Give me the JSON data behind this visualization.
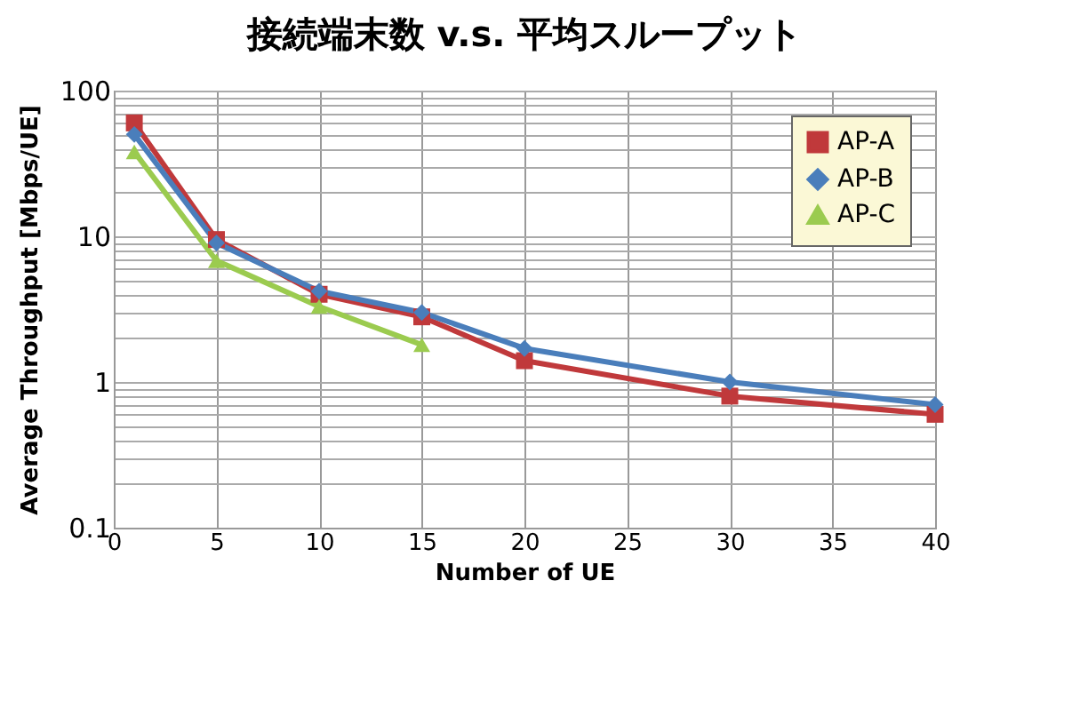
{
  "chart_data": {
    "type": "line",
    "title": "接続端末数 v.s. 平均スループット",
    "xlabel": "Number of UE",
    "ylabel": "Average Throughput [Mbps/UE]",
    "x": [
      1,
      5,
      10,
      15,
      20,
      30,
      40
    ],
    "series": [
      {
        "name": "AP-A",
        "color": "#c0393b",
        "marker": "square",
        "values": [
          60,
          9.5,
          4,
          2.8,
          1.4,
          0.8,
          0.6
        ]
      },
      {
        "name": "AP-B",
        "color": "#4a7ebb",
        "marker": "diamond",
        "values": [
          50,
          9,
          4.2,
          3,
          1.7,
          1.0,
          0.7
        ]
      },
      {
        "name": "AP-C",
        "color": "#9bcb4f",
        "marker": "triangle",
        "x": [
          1,
          5,
          10,
          15
        ],
        "values": [
          38,
          6.8,
          3.3,
          1.8
        ]
      }
    ],
    "log": "y",
    "xlim": [
      0,
      40
    ],
    "xticks": [
      0,
      5,
      10,
      15,
      20,
      25,
      30,
      35,
      40
    ],
    "ylim": [
      0.1,
      100
    ],
    "yticks": [
      0.1,
      {
        "value": 0.2,
        "label": null
      },
      {
        "value": 0.3,
        "label": null
      },
      {
        "value": 0.4,
        "label": null
      },
      {
        "value": 0.5,
        "label": null
      },
      {
        "value": 0.6,
        "label": null
      },
      {
        "value": 0.7,
        "label": null
      },
      {
        "value": 0.8,
        "label": null
      },
      {
        "value": 0.9,
        "label": null
      },
      1,
      {
        "value": 2,
        "label": null
      },
      {
        "value": 3,
        "label": null
      },
      {
        "value": 4,
        "label": null
      },
      {
        "value": 5,
        "label": null
      },
      {
        "value": 6,
        "label": null
      },
      {
        "value": 7,
        "label": null
      },
      {
        "value": 8,
        "label": null
      },
      {
        "value": 9,
        "label": null
      },
      10,
      {
        "value": 20,
        "label": null
      },
      {
        "value": 30,
        "label": null
      },
      {
        "value": 40,
        "label": null
      },
      {
        "value": 50,
        "label": null
      },
      {
        "value": 60,
        "label": null
      },
      {
        "value": 70,
        "label": null
      },
      {
        "value": 80,
        "label": null
      },
      {
        "value": 90,
        "label": null
      },
      100
    ],
    "grid": true,
    "legend": "top right",
    "line_style": "solid"
  }
}
